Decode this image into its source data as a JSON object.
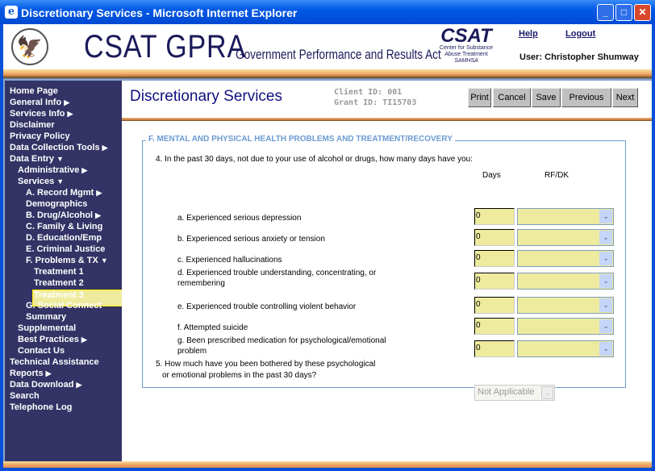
{
  "window": {
    "title": "Discretionary Services - Microsoft Internet Explorer"
  },
  "header": {
    "title": "CSAT GPRA",
    "subtitle": "Government Performance and Results Act",
    "logo_text": "CSAT",
    "logo_sub1": "Center for Substance",
    "logo_sub2": "Abuse Treatment",
    "logo_sub3": "SAMHSA",
    "help": "Help",
    "logout": "Logout",
    "user": "User: Christopher Shumway"
  },
  "sidebar": {
    "items": [
      {
        "label": "Home Page",
        "level": 0
      },
      {
        "label": "General Info",
        "level": 0,
        "arrow": "▶"
      },
      {
        "label": "Services Info",
        "level": 0,
        "arrow": "▶"
      },
      {
        "label": "Disclaimer",
        "level": 0
      },
      {
        "label": "Privacy Policy",
        "level": 0
      },
      {
        "label": "Data Collection Tools",
        "level": 0,
        "arrow": "▶"
      },
      {
        "label": "Data Entry",
        "level": 0,
        "arrow": "▼"
      },
      {
        "label": "Administrative",
        "level": 1,
        "arrow": "▶"
      },
      {
        "label": "Services",
        "level": 1,
        "arrow": "▼"
      },
      {
        "label": "A. Record Mgmt",
        "level": 2,
        "arrow": "▶"
      },
      {
        "label": "Demographics",
        "level": 2
      },
      {
        "label": "B. Drug/Alcohol",
        "level": 2,
        "arrow": "▶"
      },
      {
        "label": "C. Family & Living",
        "level": 2
      },
      {
        "label": "D. Education/Emp",
        "level": 2
      },
      {
        "label": "E. Criminal Justice",
        "level": 2
      },
      {
        "label": "F. Problems & TX",
        "level": 2,
        "arrow": "▼"
      },
      {
        "label": "Treatment 1",
        "level": 3
      },
      {
        "label": "Treatment 2",
        "level": 3
      },
      {
        "label": "Treatment 3",
        "level": 3,
        "selected": true
      },
      {
        "label": "G. Social Connect",
        "level": 2
      },
      {
        "label": "Summary",
        "level": 2
      },
      {
        "label": "Supplemental",
        "level": 1
      },
      {
        "label": "Best Practices",
        "level": 1,
        "arrow": "▶"
      },
      {
        "label": "Contact Us",
        "level": 1
      },
      {
        "label": "Technical Assistance",
        "level": 0
      },
      {
        "label": "Reports",
        "level": 0,
        "arrow": "▶"
      },
      {
        "label": "Data Download",
        "level": 0,
        "arrow": "▶"
      },
      {
        "label": "Search",
        "level": 0
      },
      {
        "label": "Telephone Log",
        "level": 0
      }
    ]
  },
  "main": {
    "title": "Discretionary Services",
    "client_id": "Client ID: 001",
    "grant_id": "Grant ID: TI15703",
    "buttons": {
      "print": "Print",
      "cancel": "Cancel",
      "save": "Save",
      "previous": "Previous",
      "next": "Next"
    },
    "section": "F. MENTAL AND PHYSICAL HEALTH PROBLEMS AND TREATMENT/RECOVERY",
    "q4": "4. In the past 30 days, not due to your use of alcohol or drugs, how many days have you:",
    "col_days": "Days",
    "col_rfdk": "RF/DK",
    "rows": [
      {
        "label": "a. Experienced serious depression",
        "days": "0",
        "rfdk": ""
      },
      {
        "label": "b. Experienced serious anxiety or tension",
        "days": "0",
        "rfdk": ""
      },
      {
        "label": "c. Experienced hallucinations",
        "days": "0",
        "rfdk": ""
      },
      {
        "label": "d. Experienced trouble understanding, concentrating, or remembering",
        "days": "0",
        "rfdk": ""
      },
      {
        "label": "e. Experienced trouble controlling violent behavior",
        "days": "0",
        "rfdk": ""
      },
      {
        "label": "f.  Attempted suicide",
        "days": "0",
        "rfdk": ""
      },
      {
        "label": "g. Been prescribed medication for psychological/emotional problem",
        "days": "0",
        "rfdk": ""
      }
    ],
    "q5_line1": "5. How much have you been bothered by these psychological",
    "q5_line2": "or emotional problems in the past 30 days?",
    "q5_value": "Not Applicable"
  },
  "colors": {
    "sidebar": "#333366",
    "field": "#eeeb9f",
    "title": "#101080"
  }
}
